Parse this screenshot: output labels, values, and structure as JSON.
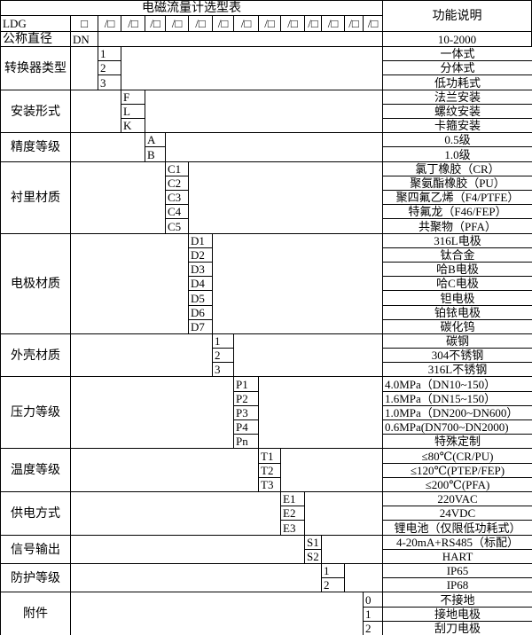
{
  "title": "电磁流量计选型表",
  "function_header": "功能说明",
  "model_row": {
    "model": "LDG",
    "first_slot": "□",
    "slots": [
      "/□",
      "/□",
      "/□",
      "/□",
      "/□",
      "/□",
      "/□",
      "/□",
      "/□",
      "/□",
      "/□",
      "/□",
      "/□"
    ]
  },
  "nominal": {
    "label": "公称直径",
    "code": "DN",
    "description": "10-2000"
  },
  "groups": [
    {
      "label": "转换器类型",
      "slot": 0,
      "codes": [
        "1",
        "2",
        "3"
      ],
      "descriptions": [
        "一体式",
        "分体式",
        "低功耗式"
      ]
    },
    {
      "label": "安装形式",
      "slot": 1,
      "codes": [
        "F",
        "L",
        "K"
      ],
      "descriptions": [
        "法兰安装",
        "螺纹安装",
        "卡箍安装"
      ]
    },
    {
      "label": "精度等级",
      "slot": 2,
      "codes": [
        "A",
        "B"
      ],
      "descriptions": [
        "0.5级",
        "1.0级"
      ]
    },
    {
      "label": "衬里材质",
      "slot": 3,
      "codes": [
        "C1",
        "C2",
        "C3",
        "C4",
        "C5"
      ],
      "descriptions": [
        "氯丁橡胶（CR）",
        "聚氨酯橡胶（PU）",
        "聚四氟乙烯（F4/PTFE）",
        "特氟龙（F46/FEP）",
        "共聚物（PFA）"
      ]
    },
    {
      "label": "电极材质",
      "slot": 4,
      "codes": [
        "D1",
        "D2",
        "D3",
        "D4",
        "D5",
        "D6",
        "D7"
      ],
      "descriptions": [
        "316L电极",
        "钛合金",
        "哈B电极",
        "哈C电极",
        "钽电极",
        "铂铱电极",
        "碳化钨"
      ]
    },
    {
      "label": "外壳材质",
      "slot": 5,
      "codes": [
        "1",
        "2",
        "3"
      ],
      "descriptions": [
        "碳钢",
        "304不锈钢",
        "316L不锈钢"
      ]
    },
    {
      "label": "压力等级",
      "slot": 6,
      "codes": [
        "P1",
        "P2",
        "P3",
        "P4",
        "Pn"
      ],
      "descriptions": [
        "4.0MPa（DN10~150）",
        "1.6MPa（DN15~150）",
        "1.0MPa（DN200~DN600）",
        "0.6MPa(DN700~DN2000)",
        "特殊定制"
      ],
      "left_aligned": [
        true,
        true,
        true,
        true,
        false
      ]
    },
    {
      "label": "温度等级",
      "slot": 7,
      "codes": [
        "T1",
        "T2",
        "T3"
      ],
      "descriptions": [
        "≤80℃(CR/PU)",
        "≤120℃(PTEP/FEP)",
        "≤200℃(PFA)"
      ]
    },
    {
      "label": "供电方式",
      "slot": 8,
      "codes": [
        "E1",
        "E2",
        "E3"
      ],
      "descriptions": [
        "220VAC",
        "24VDC",
        "锂电池（仅限低功耗式）"
      ]
    },
    {
      "label": "信号输出",
      "slot": 9,
      "codes": [
        "S1",
        "S2"
      ],
      "descriptions": [
        "4-20mA+RS485（标配）",
        "HART"
      ]
    },
    {
      "label": "防护等级",
      "slot": 10,
      "codes": [
        "1",
        "2"
      ],
      "descriptions": [
        "IP65",
        "IP68"
      ]
    },
    {
      "label": "附件",
      "slot": 12,
      "codes": [
        "0",
        "1",
        "2"
      ],
      "descriptions": [
        "不接地",
        "接地电极",
        "刮刀电极"
      ]
    }
  ]
}
